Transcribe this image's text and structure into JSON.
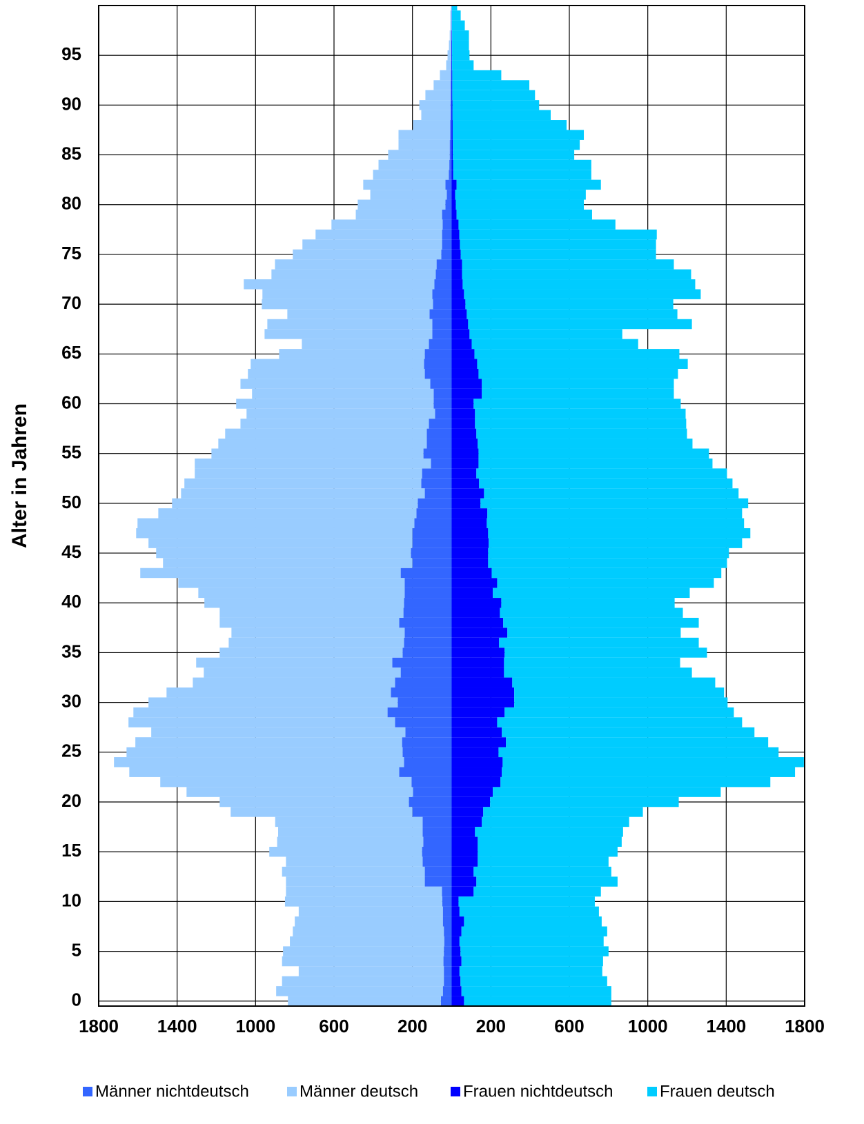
{
  "chart_data": {
    "type": "bar",
    "orientation": "horizontal",
    "stacked": true,
    "y_label": "Alter in Jahren",
    "y": [
      0,
      1,
      2,
      3,
      4,
      5,
      6,
      7,
      8,
      9,
      10,
      11,
      12,
      13,
      14,
      15,
      16,
      17,
      18,
      19,
      20,
      21,
      22,
      23,
      24,
      25,
      26,
      27,
      28,
      29,
      30,
      31,
      32,
      33,
      34,
      35,
      36,
      37,
      38,
      39,
      40,
      41,
      42,
      43,
      44,
      45,
      46,
      47,
      48,
      49,
      50,
      51,
      52,
      53,
      54,
      55,
      56,
      57,
      58,
      59,
      60,
      61,
      62,
      63,
      64,
      65,
      66,
      67,
      68,
      69,
      70,
      71,
      72,
      73,
      74,
      75,
      76,
      77,
      78,
      79,
      80,
      81,
      82,
      83,
      84,
      85,
      86,
      87,
      88,
      89,
      90,
      91,
      92,
      93,
      94,
      95,
      96,
      97,
      98,
      99,
      100
    ],
    "ylim": [
      -0.5,
      100
    ],
    "yticks": [
      0,
      5,
      10,
      15,
      20,
      25,
      30,
      35,
      40,
      45,
      50,
      55,
      60,
      65,
      70,
      75,
      80,
      85,
      90,
      95
    ],
    "xlim": [
      -1800,
      1800
    ],
    "xticks": [
      {
        "value": -1800,
        "label": "1800"
      },
      {
        "value": -1400,
        "label": "1400"
      },
      {
        "value": -1000,
        "label": "1000"
      },
      {
        "value": -600,
        "label": "600"
      },
      {
        "value": -200,
        "label": "200"
      },
      200,
      600,
      1000,
      1400,
      1800
    ],
    "grid": true,
    "series": [
      {
        "name": "Männer nichtdeutsch",
        "color": "#3366ff",
        "values": [
          -55,
          -45,
          -40,
          -40,
          -42,
          -40,
          -38,
          -40,
          -45,
          -45,
          -48,
          -50,
          -137,
          -137,
          -148,
          -151,
          -145,
          -148,
          -148,
          -200,
          -218,
          -197,
          -205,
          -268,
          -243,
          -250,
          -253,
          -236,
          -289,
          -327,
          -275,
          -310,
          -289,
          -260,
          -303,
          -250,
          -243,
          -240,
          -268,
          -246,
          -243,
          -240,
          -240,
          -260,
          -200,
          -208,
          -200,
          -200,
          -190,
          -180,
          -173,
          -137,
          -155,
          -151,
          -106,
          -144,
          -127,
          -127,
          -116,
          -85,
          -92,
          -92,
          -109,
          -137,
          -141,
          -137,
          -116,
          -99,
          -99,
          -113,
          -95,
          -99,
          -88,
          -81,
          -77,
          -53,
          -49,
          -49,
          -46,
          -49,
          -32,
          -25,
          -32,
          -15,
          -12,
          -10,
          -10,
          -8,
          -8,
          -6,
          -6,
          -5,
          -5,
          -4,
          -3,
          -2,
          -2,
          -1,
          -1,
          -1,
          0
        ]
      },
      {
        "name": "Männer deutsch",
        "color": "#99ccff",
        "values": [
          -780,
          -850,
          -825,
          -740,
          -823,
          -820,
          -787,
          -770,
          -755,
          -735,
          -802,
          -795,
          -708,
          -728,
          -697,
          -779,
          -745,
          -737,
          -752,
          -927,
          -965,
          -1155,
          -1281,
          -1376,
          -1479,
          -1408,
          -1360,
          -1296,
          -1359,
          -1296,
          -1271,
          -1144,
          -1031,
          -1004,
          -1000,
          -933,
          -894,
          -883,
          -915,
          -937,
          -1018,
          -1052,
          -1154,
          -1328,
          -1272,
          -1299,
          -1346,
          -1409,
          -1412,
          -1316,
          -1253,
          -1243,
          -1208,
          -1159,
          -1204,
          -1081,
          -1063,
          -1028,
          -961,
          -961,
          -1007,
          -926,
          -968,
          -902,
          -884,
          -743,
          -648,
          -855,
          -841,
          -725,
          -873,
          -866,
          -972,
          -838,
          -824,
          -757,
          -712,
          -645,
          -567,
          -440,
          -447,
          -390,
          -419,
          -386,
          -361,
          -314,
          -261,
          -263,
          -189,
          -149,
          -159,
          -129,
          -87,
          -56,
          -25,
          -19,
          -12,
          -9,
          -6,
          -6,
          -4
        ]
      },
      {
        "name": "Frauen nichtdeutsch",
        "color": "#0000ff",
        "values": [
          63,
          50,
          45,
          40,
          50,
          45,
          40,
          50,
          63,
          40,
          35,
          112,
          126,
          112,
          133,
          133,
          133,
          119,
          154,
          161,
          196,
          210,
          249,
          256,
          260,
          239,
          277,
          256,
          232,
          270,
          319,
          319,
          309,
          267,
          267,
          270,
          242,
          284,
          263,
          246,
          253,
          210,
          232,
          204,
          186,
          186,
          189,
          186,
          179,
          182,
          147,
          165,
          140,
          126,
          137,
          137,
          133,
          126,
          119,
          119,
          112,
          154,
          154,
          137,
          130,
          116,
          102,
          91,
          84,
          77,
          70,
          63,
          56,
          53,
          53,
          46,
          42,
          39,
          35,
          25,
          21,
          18,
          25,
          8,
          7,
          6,
          6,
          5,
          5,
          4,
          4,
          3,
          3,
          3,
          2,
          2,
          2,
          2,
          1,
          1,
          1
        ]
      },
      {
        "name": "Frauen deutsch",
        "color": "#00ccff",
        "values": [
          751,
          764,
          748,
          728,
          722,
          755,
          735,
          743,
          702,
          711,
          695,
          649,
          720,
          702,
          667,
          713,
          734,
          755,
          751,
          814,
          962,
          1162,
          1376,
          1495,
          1536,
          1428,
          1337,
          1288,
          1249,
          1169,
          1088,
          1070,
          1035,
          958,
          898,
          1032,
          1018,
          884,
          997,
          933,
          884,
          1004,
          1105,
          1171,
          1218,
          1228,
          1292,
          1337,
          1312,
          1299,
          1365,
          1298,
          1292,
          1278,
          1193,
          1175,
          1095,
          1074,
          1077,
          1074,
          1056,
          979,
          979,
          1017,
          1074,
          1045,
          849,
          779,
          1141,
          1074,
          1060,
          1207,
          1186,
          1168,
          1080,
          996,
          1000,
          1007,
          800,
          691,
          653,
          666,
          736,
          704,
          705,
          619,
          647,
          669,
          581,
          501,
          442,
          422,
          393,
          250,
          110,
          89,
          86,
          86,
          66,
          45,
          27
        ]
      }
    ]
  }
}
